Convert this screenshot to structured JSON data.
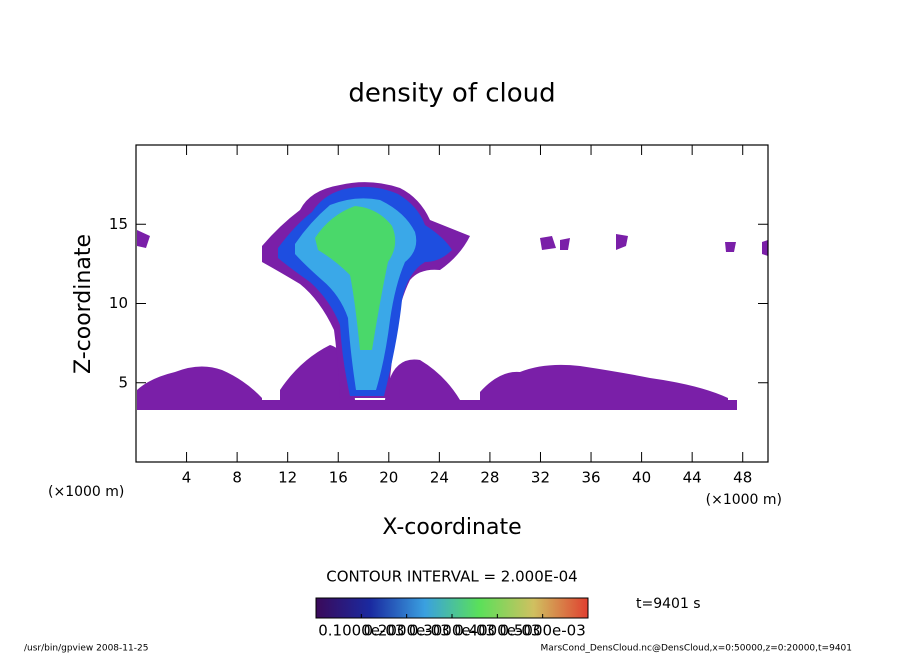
{
  "chart_data": {
    "type": "contour",
    "title": "density of cloud",
    "xlabel": "X-coordinate",
    "ylabel": "Z-coordinate",
    "xunit": "(×1000 m)",
    "yunit": "(×1000 m)",
    "xlim": [
      0,
      50
    ],
    "ylim": [
      0,
      20
    ],
    "xticks": [
      4,
      8,
      12,
      16,
      20,
      24,
      28,
      32,
      36,
      40,
      44,
      48
    ],
    "yticks": [
      5,
      10,
      15
    ],
    "contour_interval": "CONTOUR INTERVAL = 2.000E-04",
    "time_label": "t=9401 s",
    "colorbar_lim": [
      0,
      0.0006
    ],
    "colorbar_ticks": [
      {
        "value": 0.0001,
        "label": "0.1000e-03"
      },
      {
        "value": 0.0002,
        "label": "0.2000e-03"
      },
      {
        "value": 0.0003,
        "label": "0.3000e-03"
      },
      {
        "value": 0.0004,
        "label": "0.4000e-03"
      },
      {
        "value": 0.0005,
        "label": "0.5000e-03"
      }
    ],
    "footer_left": "/usr/bin/gpview  2008-11-25",
    "footer_right": "MarsCond_DensCloud.nc@DensCloud,x=0:50000,z=0:20000,t=9401"
  }
}
